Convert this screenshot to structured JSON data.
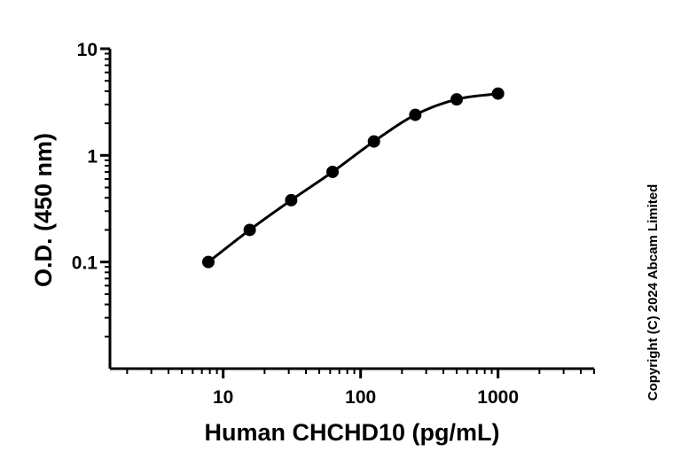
{
  "chart_data": {
    "type": "scatter",
    "xlabel": "Human CHCHD10 (pg/mL)",
    "ylabel": "O.D. (450 nm)",
    "x_scale": "log",
    "y_scale": "log",
    "xlim": [
      1.5,
      5000
    ],
    "ylim": [
      0.01,
      10
    ],
    "x_ticks": [
      {
        "value": 10,
        "label": "10"
      },
      {
        "value": 100,
        "label": "100"
      },
      {
        "value": 1000,
        "label": "1000"
      }
    ],
    "y_ticks": [
      {
        "value": 10,
        "label": "10"
      },
      {
        "value": 1,
        "label": "1"
      },
      {
        "value": 0.1,
        "label": "0.1"
      }
    ],
    "series": [
      {
        "x": [
          7.8,
          15.6,
          31.25,
          62.5,
          125,
          250,
          500,
          1000
        ],
        "y": [
          0.1,
          0.2,
          0.38,
          0.7,
          1.35,
          2.4,
          3.35,
          3.8
        ],
        "marker": "filled-circle",
        "fit_curve": true
      }
    ],
    "grid": false,
    "legend": "none",
    "colors": {
      "points": "#000000",
      "curve": "#000000",
      "axes": "#000000"
    }
  },
  "copyright": "Copyright (C) 2024 Abcam Limited"
}
